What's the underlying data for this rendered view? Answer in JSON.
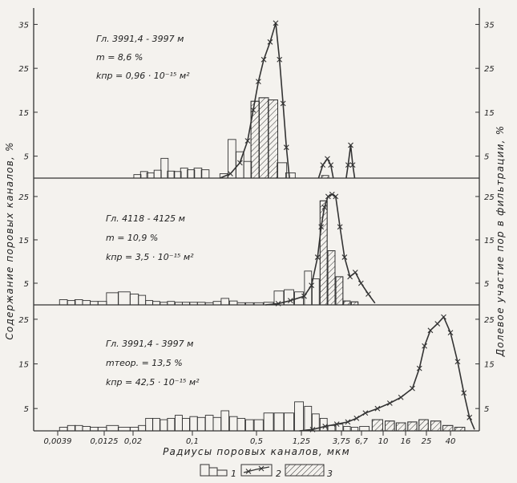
{
  "chart_data": {
    "type": "bar",
    "ylabel_left": "Содержание поровых каналов, %",
    "ylabel_right": "Долевое участие пор в фильтрации, %",
    "xlabel": "Радиусы поровых каналов, мкм",
    "x_ticks": [
      {
        "label": "0,0039",
        "v": 0.0039
      },
      {
        "label": "0,0125",
        "v": 0.0125
      },
      {
        "label": "0,02",
        "v": 0.02
      },
      {
        "label": "0,1",
        "v": 0.1
      },
      {
        "label": "0,5",
        "v": 0.5
      },
      {
        "label": "1,25",
        "v": 1.25
      },
      {
        "label": "3,75",
        "v": 3.75
      },
      {
        "label": "6,7",
        "v": 6.7
      },
      {
        "label": "10",
        "v": 10
      },
      {
        "label": "16",
        "v": 16
      },
      {
        "label": "25",
        "v": 25
      },
      {
        "label": "40",
        "v": 40
      }
    ],
    "legend": [
      {
        "key": "1",
        "style": "open-bar"
      },
      {
        "key": "2",
        "style": "line-with-x"
      },
      {
        "key": "3",
        "style": "hatched-bar"
      }
    ],
    "panels": [
      {
        "annotation": [
          "Гл. 3991,4 - 3997 м",
          "m = 8,6 %",
          "kпр = 0,96 · 10⁻¹⁵ м²"
        ],
        "y_ticks": [
          "5",
          "15",
          "25",
          "35"
        ],
        "ylim": [
          0,
          38
        ],
        "bars": [
          {
            "x": 0.0225,
            "v": 0.8
          },
          {
            "x": 0.027,
            "v": 1.5
          },
          {
            "x": 0.032,
            "v": 1.2
          },
          {
            "x": 0.039,
            "v": 1.8
          },
          {
            "x": 0.047,
            "v": 4.5
          },
          {
            "x": 0.056,
            "v": 1.6
          },
          {
            "x": 0.067,
            "v": 1.5
          },
          {
            "x": 0.08,
            "v": 2.3
          },
          {
            "x": 0.096,
            "v": 1.9
          },
          {
            "x": 0.115,
            "v": 2.3
          },
          {
            "x": 0.138,
            "v": 1.9
          },
          {
            "x": 0.22,
            "v": 1.0
          },
          {
            "x": 0.27,
            "v": 8.8
          },
          {
            "x": 0.33,
            "v": 6.0
          },
          {
            "x": 0.4,
            "v": 3.8
          },
          {
            "x": 0.48,
            "v": 17.5
          },
          {
            "x": 0.58,
            "v": 18.3
          },
          {
            "x": 0.7,
            "v": 17.8
          },
          {
            "x": 0.84,
            "v": 3.5
          },
          {
            "x": 1.0,
            "v": 1.2
          }
        ],
        "hatched": [
          {
            "x": 0.48,
            "v": 17.5
          },
          {
            "x": 0.58,
            "v": 18.3
          },
          {
            "x": 0.7,
            "v": 17.8
          },
          {
            "x": 2.4,
            "v": 0.6
          }
        ],
        "curves": [
          [
            [
              0.2,
              0
            ],
            [
              0.26,
              1.0
            ],
            [
              0.33,
              3.5
            ],
            [
              0.4,
              8.5
            ],
            [
              0.46,
              15.5
            ],
            [
              0.52,
              22
            ],
            [
              0.58,
              27
            ],
            [
              0.66,
              31
            ],
            [
              0.74,
              35.3
            ],
            [
              0.8,
              27
            ],
            [
              0.86,
              17
            ],
            [
              0.92,
              7
            ],
            [
              0.98,
              0
            ]
          ],
          [
            [
              2.0,
              0
            ],
            [
              2.25,
              3.0
            ],
            [
              2.55,
              4.4
            ],
            [
              2.8,
              3.0
            ],
            [
              3.0,
              0
            ]
          ],
          [
            [
              4.3,
              0
            ],
            [
              4.55,
              3.0
            ],
            [
              4.9,
              7.5
            ],
            [
              5.2,
              3.0
            ],
            [
              5.5,
              0
            ]
          ]
        ]
      },
      {
        "annotation": [
          "Гл. 4118 - 4125 м",
          "m = 10,9 %",
          "kпр = 3,5 · 10⁻¹⁵ м²"
        ],
        "y_ticks": [
          "5",
          "15",
          "25"
        ],
        "ylim": [
          0,
          28.5
        ],
        "bars": [
          {
            "x": 0.0045,
            "v": 1.2
          },
          {
            "x": 0.0055,
            "v": 1.0
          },
          {
            "x": 0.0066,
            "v": 1.2
          },
          {
            "x": 0.008,
            "v": 1.0
          },
          {
            "x": 0.0097,
            "v": 0.8
          },
          {
            "x": 0.0118,
            "v": 0.8
          },
          {
            "x": 0.0143,
            "v": 2.8
          },
          {
            "x": 0.0173,
            "v": 3.0
          },
          {
            "x": 0.021,
            "v": 2.5
          },
          {
            "x": 0.0255,
            "v": 2.2
          },
          {
            "x": 0.031,
            "v": 1.0
          },
          {
            "x": 0.0375,
            "v": 0.8
          },
          {
            "x": 0.046,
            "v": 0.6
          },
          {
            "x": 0.056,
            "v": 0.8
          },
          {
            "x": 0.069,
            "v": 0.6
          },
          {
            "x": 0.084,
            "v": 0.6
          },
          {
            "x": 0.103,
            "v": 0.6
          },
          {
            "x": 0.125,
            "v": 0.6
          },
          {
            "x": 0.153,
            "v": 0.5
          },
          {
            "x": 0.186,
            "v": 0.8
          },
          {
            "x": 0.227,
            "v": 1.5
          },
          {
            "x": 0.28,
            "v": 0.9
          },
          {
            "x": 0.34,
            "v": 0.5
          },
          {
            "x": 0.42,
            "v": 0.5
          },
          {
            "x": 0.52,
            "v": 0.5
          },
          {
            "x": 0.64,
            "v": 0.6
          },
          {
            "x": 0.79,
            "v": 3.2
          },
          {
            "x": 0.97,
            "v": 3.5
          },
          {
            "x": 1.2,
            "v": 3.0
          },
          {
            "x": 1.5,
            "v": 7.8
          },
          {
            "x": 1.85,
            "v": 6.0
          },
          {
            "x": 2.3,
            "v": 24.0
          },
          {
            "x": 2.85,
            "v": 12.5
          },
          {
            "x": 3.55,
            "v": 6.5
          },
          {
            "x": 4.4,
            "v": 0.9
          },
          {
            "x": 5.5,
            "v": 0.7
          }
        ],
        "hatched": [
          {
            "x": 2.3,
            "v": 24.0
          },
          {
            "x": 2.85,
            "v": 12.5
          },
          {
            "x": 3.55,
            "v": 6.5
          },
          {
            "x": 4.4,
            "v": 0.9
          },
          {
            "x": 5.5,
            "v": 0.7
          }
        ],
        "curves": [
          [
            [
              0.6,
              0
            ],
            [
              0.78,
              0.3
            ],
            [
              1.0,
              1.0
            ],
            [
              1.35,
              2.0
            ],
            [
              1.65,
              4.5
            ],
            [
              1.95,
              11
            ],
            [
              2.15,
              18
            ],
            [
              2.35,
              22.5
            ],
            [
              2.6,
              25
            ],
            [
              2.9,
              25.5
            ],
            [
              3.2,
              25
            ],
            [
              3.6,
              18
            ],
            [
              4.1,
              11
            ],
            [
              4.8,
              6.5
            ],
            [
              5.6,
              7.5
            ],
            [
              6.6,
              5.0
            ],
            [
              7.6,
              2.5
            ],
            [
              8.6,
              0.4
            ]
          ]
        ]
      },
      {
        "annotation": [
          "Гл. 3991,4 - 3997 м",
          "mтеор. = 13,5 %",
          "kпр = 42,5 · 10⁻¹⁵ м²"
        ],
        "y_ticks": [
          "5",
          "15",
          "25"
        ],
        "ylim": [
          0,
          27.5
        ],
        "bars": [
          {
            "x": 0.0045,
            "v": 0.8
          },
          {
            "x": 0.0055,
            "v": 1.2
          },
          {
            "x": 0.0066,
            "v": 1.2
          },
          {
            "x": 0.008,
            "v": 1.0
          },
          {
            "x": 0.0097,
            "v": 0.8
          },
          {
            "x": 0.0118,
            "v": 0.8
          },
          {
            "x": 0.0143,
            "v": 1.2
          },
          {
            "x": 0.0173,
            "v": 0.8
          },
          {
            "x": 0.021,
            "v": 0.8
          },
          {
            "x": 0.0255,
            "v": 1.2
          },
          {
            "x": 0.031,
            "v": 2.8
          },
          {
            "x": 0.0375,
            "v": 2.8
          },
          {
            "x": 0.046,
            "v": 2.5
          },
          {
            "x": 0.056,
            "v": 2.8
          },
          {
            "x": 0.069,
            "v": 3.5
          },
          {
            "x": 0.084,
            "v": 2.8
          },
          {
            "x": 0.103,
            "v": 3.2
          },
          {
            "x": 0.125,
            "v": 3.0
          },
          {
            "x": 0.153,
            "v": 3.5
          },
          {
            "x": 0.186,
            "v": 3.0
          },
          {
            "x": 0.227,
            "v": 4.5
          },
          {
            "x": 0.28,
            "v": 3.2
          },
          {
            "x": 0.34,
            "v": 2.8
          },
          {
            "x": 0.42,
            "v": 2.5
          },
          {
            "x": 0.52,
            "v": 2.5
          },
          {
            "x": 0.64,
            "v": 4.0
          },
          {
            "x": 0.79,
            "v": 4.0
          },
          {
            "x": 0.97,
            "v": 4.0
          },
          {
            "x": 1.2,
            "v": 6.5
          },
          {
            "x": 1.5,
            "v": 5.5
          },
          {
            "x": 1.85,
            "v": 3.8
          },
          {
            "x": 2.3,
            "v": 2.8
          },
          {
            "x": 2.85,
            "v": 1.2
          },
          {
            "x": 3.55,
            "v": 1.5
          },
          {
            "x": 4.4,
            "v": 1.0
          },
          {
            "x": 5.5,
            "v": 0.8
          },
          {
            "x": 7.0,
            "v": 1.0
          },
          {
            "x": 9.0,
            "v": 2.5
          },
          {
            "x": 11.5,
            "v": 2.2
          },
          {
            "x": 14.5,
            "v": 1.8
          },
          {
            "x": 18.5,
            "v": 2.0
          },
          {
            "x": 23.5,
            "v": 2.5
          },
          {
            "x": 30,
            "v": 2.2
          },
          {
            "x": 38,
            "v": 1.2
          },
          {
            "x": 48,
            "v": 0.8
          }
        ],
        "hatched": [
          {
            "x": 9.0,
            "v": 2.5
          },
          {
            "x": 11.5,
            "v": 2.2
          },
          {
            "x": 14.5,
            "v": 1.8
          },
          {
            "x": 18.5,
            "v": 2.0
          },
          {
            "x": 23.5,
            "v": 2.5
          },
          {
            "x": 30,
            "v": 2.2
          },
          {
            "x": 38,
            "v": 1.2
          },
          {
            "x": 48,
            "v": 0.8
          }
        ],
        "curves": [
          [
            [
              1.2,
              0
            ],
            [
              1.7,
              0.3
            ],
            [
              2.4,
              1.0
            ],
            [
              3.3,
              1.5
            ],
            [
              4.5,
              2.0
            ],
            [
              5.8,
              2.8
            ],
            [
              7.2,
              4.0
            ],
            [
              9.0,
              5.0
            ],
            [
              11.5,
              6.2
            ],
            [
              14.5,
              7.5
            ],
            [
              18.5,
              9.5
            ],
            [
              21.5,
              14
            ],
            [
              24,
              19
            ],
            [
              27,
              22.5
            ],
            [
              31,
              24
            ],
            [
              35,
              25.5
            ],
            [
              40,
              22
            ],
            [
              46,
              15.5
            ],
            [
              52,
              8.5
            ],
            [
              58,
              3.0
            ],
            [
              64,
              0.3
            ]
          ]
        ]
      }
    ]
  }
}
